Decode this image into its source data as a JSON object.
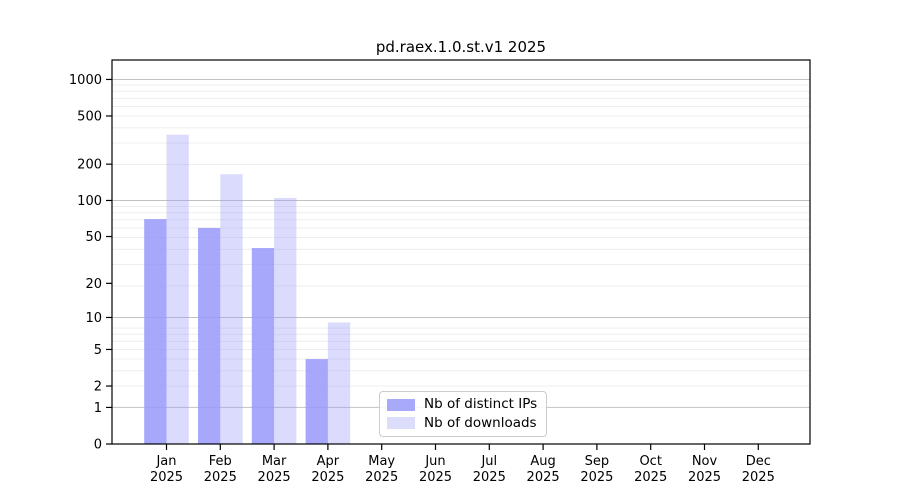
{
  "chart_data": {
    "type": "bar",
    "title": "pd.raex.1.0.st.v1 2025",
    "year_label": "2025",
    "month_labels": [
      "Jan",
      "Feb",
      "Mar",
      "Apr",
      "May",
      "Jun",
      "Jul",
      "Aug",
      "Sep",
      "Oct",
      "Nov",
      "Dec"
    ],
    "categories": [
      "Jan 2025",
      "Feb 2025",
      "Mar 2025",
      "Apr 2025",
      "May 2025",
      "Jun 2025",
      "Jul 2025",
      "Aug 2025",
      "Sep 2025",
      "Oct 2025",
      "Nov 2025",
      "Dec 2025"
    ],
    "series": [
      {
        "name": "Nb of distinct IPs",
        "color": "#9898fa",
        "fill_opacity": 0.85,
        "swatch_color": "#a9a9f9",
        "values": [
          70,
          59,
          40,
          4,
          0,
          0,
          0,
          0,
          0,
          0,
          0,
          0
        ]
      },
      {
        "name": "Nb of downloads",
        "color": "#9898fa",
        "fill_opacity": 0.35,
        "swatch_color": "#dcdcfb",
        "values": [
          350,
          165,
          105,
          9,
          0,
          0,
          0,
          0,
          0,
          0,
          0,
          0
        ]
      }
    ],
    "y_ticks": [
      0,
      1,
      2,
      5,
      10,
      20,
      50,
      100,
      200,
      500,
      1000
    ],
    "y_scale": "log10(1+value)",
    "ylim": [
      0,
      1500
    ],
    "xlabel": "",
    "ylabel": "",
    "grid": {
      "axis": "y",
      "major_values": [
        1,
        10,
        100,
        1000
      ],
      "major_color": "#c2c2c2",
      "minor_color": "#ececec"
    },
    "legend": {
      "position": "inside lower-center",
      "border_color": "#cccccc"
    }
  }
}
